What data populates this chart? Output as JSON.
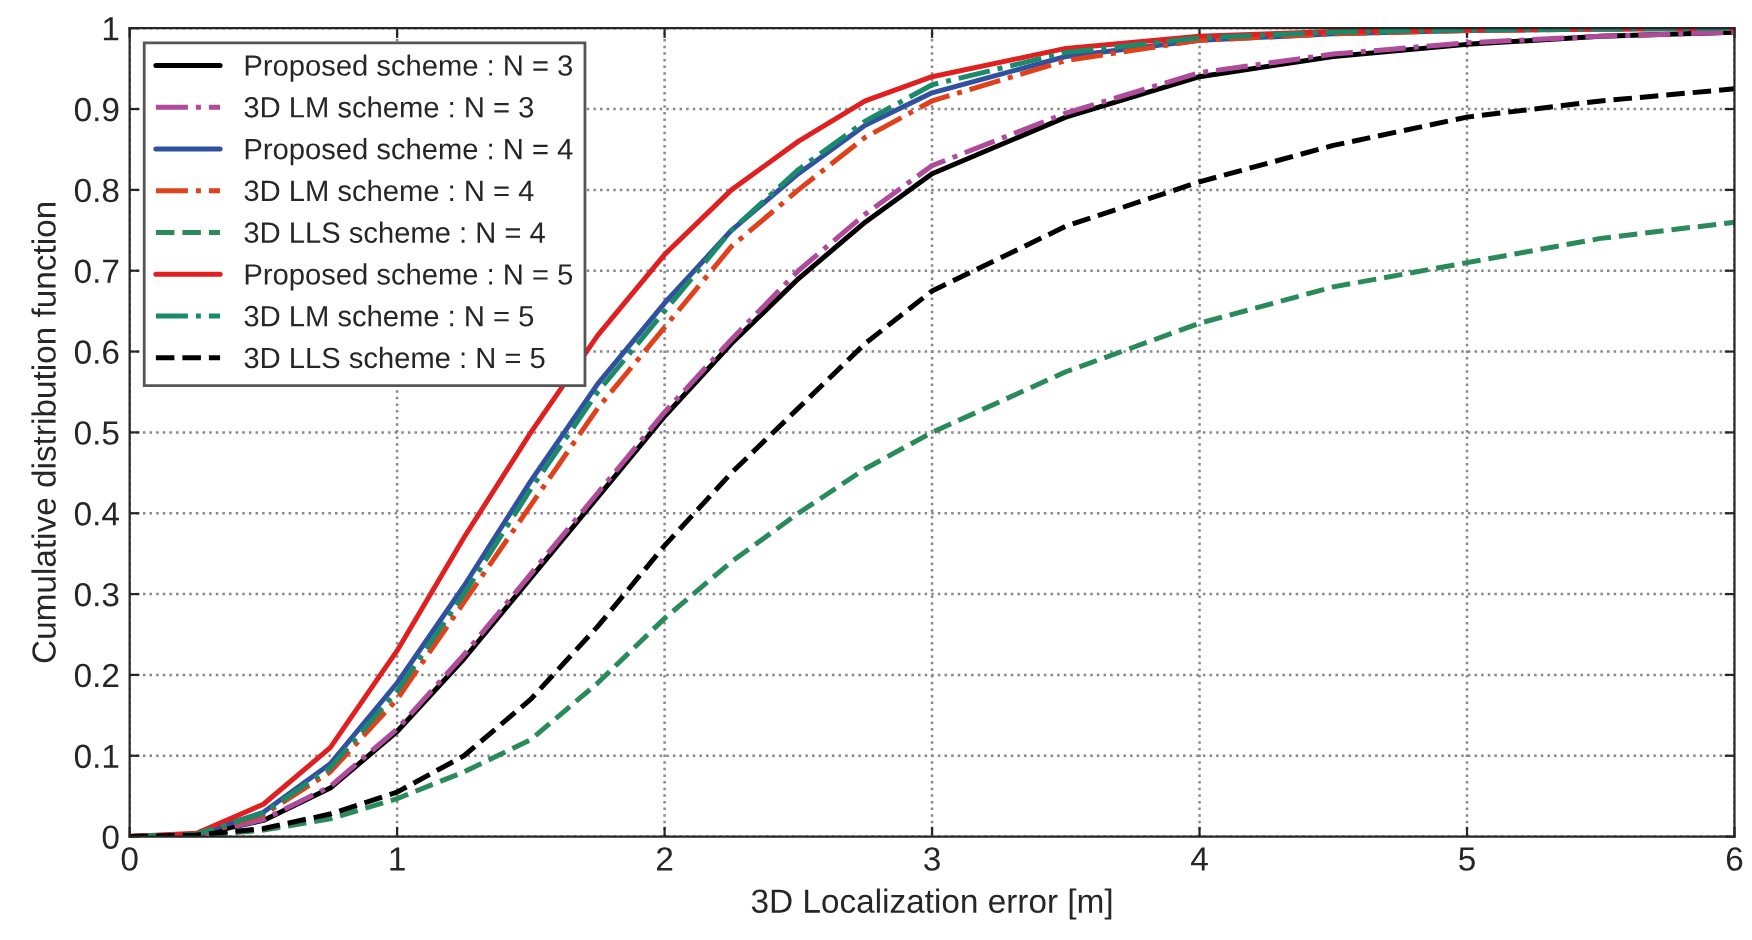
{
  "chart_data": {
    "type": "line",
    "xlabel": "3D Localization error [m]",
    "ylabel": "Cumulative distribution function",
    "x": [
      0,
      0.25,
      0.5,
      0.75,
      1,
      1.25,
      1.5,
      1.75,
      2,
      2.25,
      2.5,
      2.75,
      3,
      3.5,
      4,
      4.5,
      5,
      5.5,
      6
    ],
    "series": [
      {
        "name": "Proposed scheme : N = 3",
        "color": "#000000",
        "line_style": "solid",
        "values": [
          0,
          0.002,
          0.02,
          0.06,
          0.13,
          0.22,
          0.32,
          0.42,
          0.52,
          0.61,
          0.69,
          0.76,
          0.82,
          0.89,
          0.94,
          0.965,
          0.98,
          0.99,
          0.995
        ]
      },
      {
        "name": "3D LM scheme : N = 3",
        "color": "#b04a9a",
        "line_style": "dashdot",
        "values": [
          0,
          0.002,
          0.021,
          0.062,
          0.133,
          0.225,
          0.325,
          0.425,
          0.525,
          0.615,
          0.7,
          0.77,
          0.83,
          0.895,
          0.945,
          0.968,
          0.982,
          0.99,
          0.995
        ]
      },
      {
        "name": "Proposed scheme : N = 4",
        "color": "#3050a0",
        "line_style": "solid",
        "values": [
          0,
          0.003,
          0.03,
          0.09,
          0.19,
          0.31,
          0.44,
          0.56,
          0.66,
          0.75,
          0.82,
          0.88,
          0.92,
          0.965,
          0.985,
          0.993,
          0.997,
          0.999,
          1.0
        ]
      },
      {
        "name": "3D LM scheme : N = 4",
        "color": "#e0401a",
        "line_style": "dashdot",
        "values": [
          0,
          0.003,
          0.027,
          0.08,
          0.17,
          0.29,
          0.41,
          0.53,
          0.63,
          0.73,
          0.8,
          0.865,
          0.91,
          0.96,
          0.985,
          0.993,
          0.997,
          0.999,
          1.0
        ]
      },
      {
        "name": "3D LLS scheme : N = 4",
        "color": "#2a8a5a",
        "line_style": "dashed",
        "values": [
          0,
          0.001,
          0.008,
          0.022,
          0.047,
          0.08,
          0.12,
          0.19,
          0.27,
          0.34,
          0.4,
          0.455,
          0.5,
          0.575,
          0.635,
          0.68,
          0.71,
          0.74,
          0.76
        ]
      },
      {
        "name": "Proposed scheme : N = 5",
        "color": "#e02020",
        "line_style": "solid",
        "values": [
          0,
          0.004,
          0.04,
          0.11,
          0.23,
          0.37,
          0.5,
          0.62,
          0.72,
          0.8,
          0.86,
          0.91,
          0.94,
          0.975,
          0.99,
          0.996,
          0.998,
          0.999,
          1.0
        ]
      },
      {
        "name": "3D LM scheme : N = 5",
        "color": "#1a8a6a",
        "line_style": "dashdot",
        "values": [
          0,
          0.003,
          0.029,
          0.085,
          0.18,
          0.3,
          0.43,
          0.55,
          0.65,
          0.75,
          0.825,
          0.885,
          0.93,
          0.97,
          0.988,
          0.995,
          0.998,
          0.999,
          1.0
        ]
      },
      {
        "name": "3D LLS scheme : N = 5",
        "color": "#000000",
        "line_style": "dashed",
        "values": [
          0,
          0.002,
          0.01,
          0.028,
          0.055,
          0.1,
          0.17,
          0.26,
          0.36,
          0.45,
          0.53,
          0.61,
          0.675,
          0.755,
          0.81,
          0.855,
          0.89,
          0.91,
          0.925
        ]
      }
    ],
    "xlim": [
      0,
      6
    ],
    "ylim": [
      0,
      1
    ],
    "xticks": [
      0,
      1,
      2,
      3,
      4,
      5,
      6
    ],
    "yticks": [
      0,
      0.1,
      0.2,
      0.3,
      0.4,
      0.5,
      0.6,
      0.7,
      0.8,
      0.9,
      1
    ],
    "grid": true,
    "legend": "top left",
    "marker": "none"
  }
}
